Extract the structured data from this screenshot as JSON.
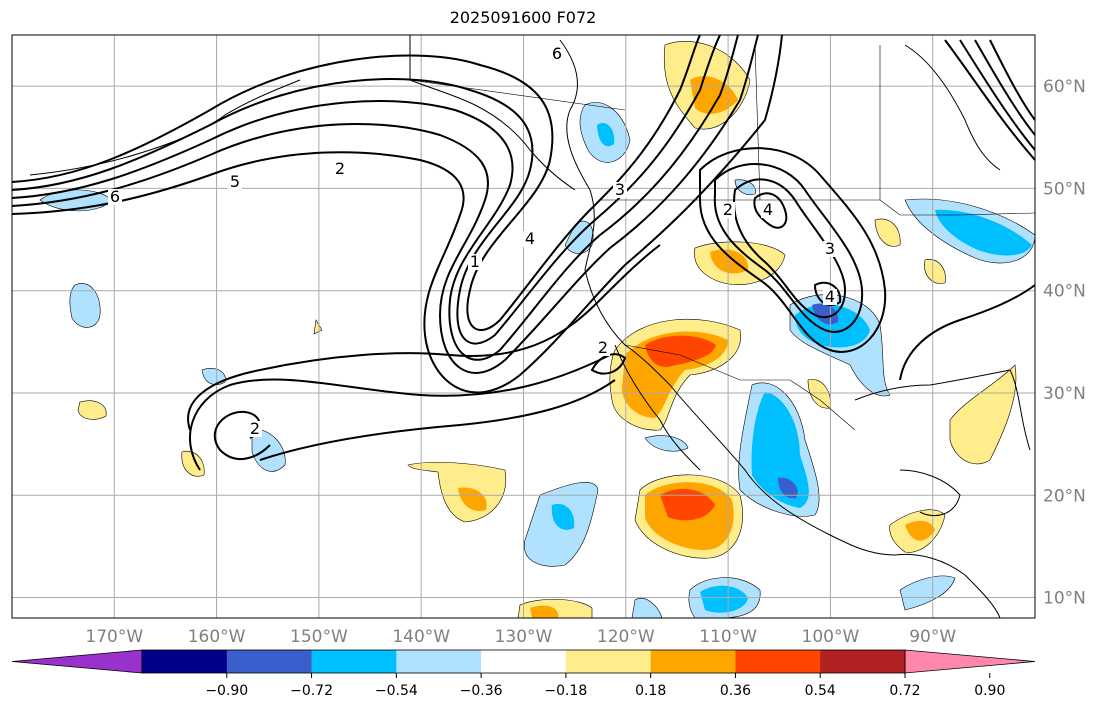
{
  "title": "2025091600 F072",
  "map": {
    "projection": "equirectangular",
    "lon_range": [
      -180,
      -80
    ],
    "lat_range": [
      8,
      65
    ],
    "lon_ticks": [
      -170,
      -160,
      -150,
      -140,
      -130,
      -120,
      -110,
      -100,
      -90
    ],
    "lat_ticks": [
      10,
      20,
      30,
      40,
      50,
      60
    ],
    "lon_tick_labels": [
      "170°W",
      "160°W",
      "150°W",
      "140°W",
      "130°W",
      "120°W",
      "110°W",
      "100°W",
      "90°W"
    ],
    "lat_tick_labels": [
      "10°N",
      "20°N",
      "30°N",
      "40°N",
      "50°N",
      "60°N"
    ],
    "grid": true
  },
  "colorbar": {
    "ticks": [
      "−0.90",
      "−0.72",
      "−0.54",
      "−0.36",
      "−0.18",
      "0.18",
      "0.36",
      "0.54",
      "0.72",
      "0.90"
    ],
    "colors": [
      "#9932cc",
      "#00008b",
      "#3a5fcd",
      "#00bfff",
      "#b0e2ff",
      "#ffffff",
      "#ffec8b",
      "#ffa500",
      "#ff4500",
      "#b22222",
      "#ff88aa"
    ]
  },
  "contour_labels": [
    "1",
    "2",
    "2",
    "2",
    "2",
    "3",
    "3",
    "4",
    "4",
    "4",
    "5",
    "6",
    "6"
  ]
}
